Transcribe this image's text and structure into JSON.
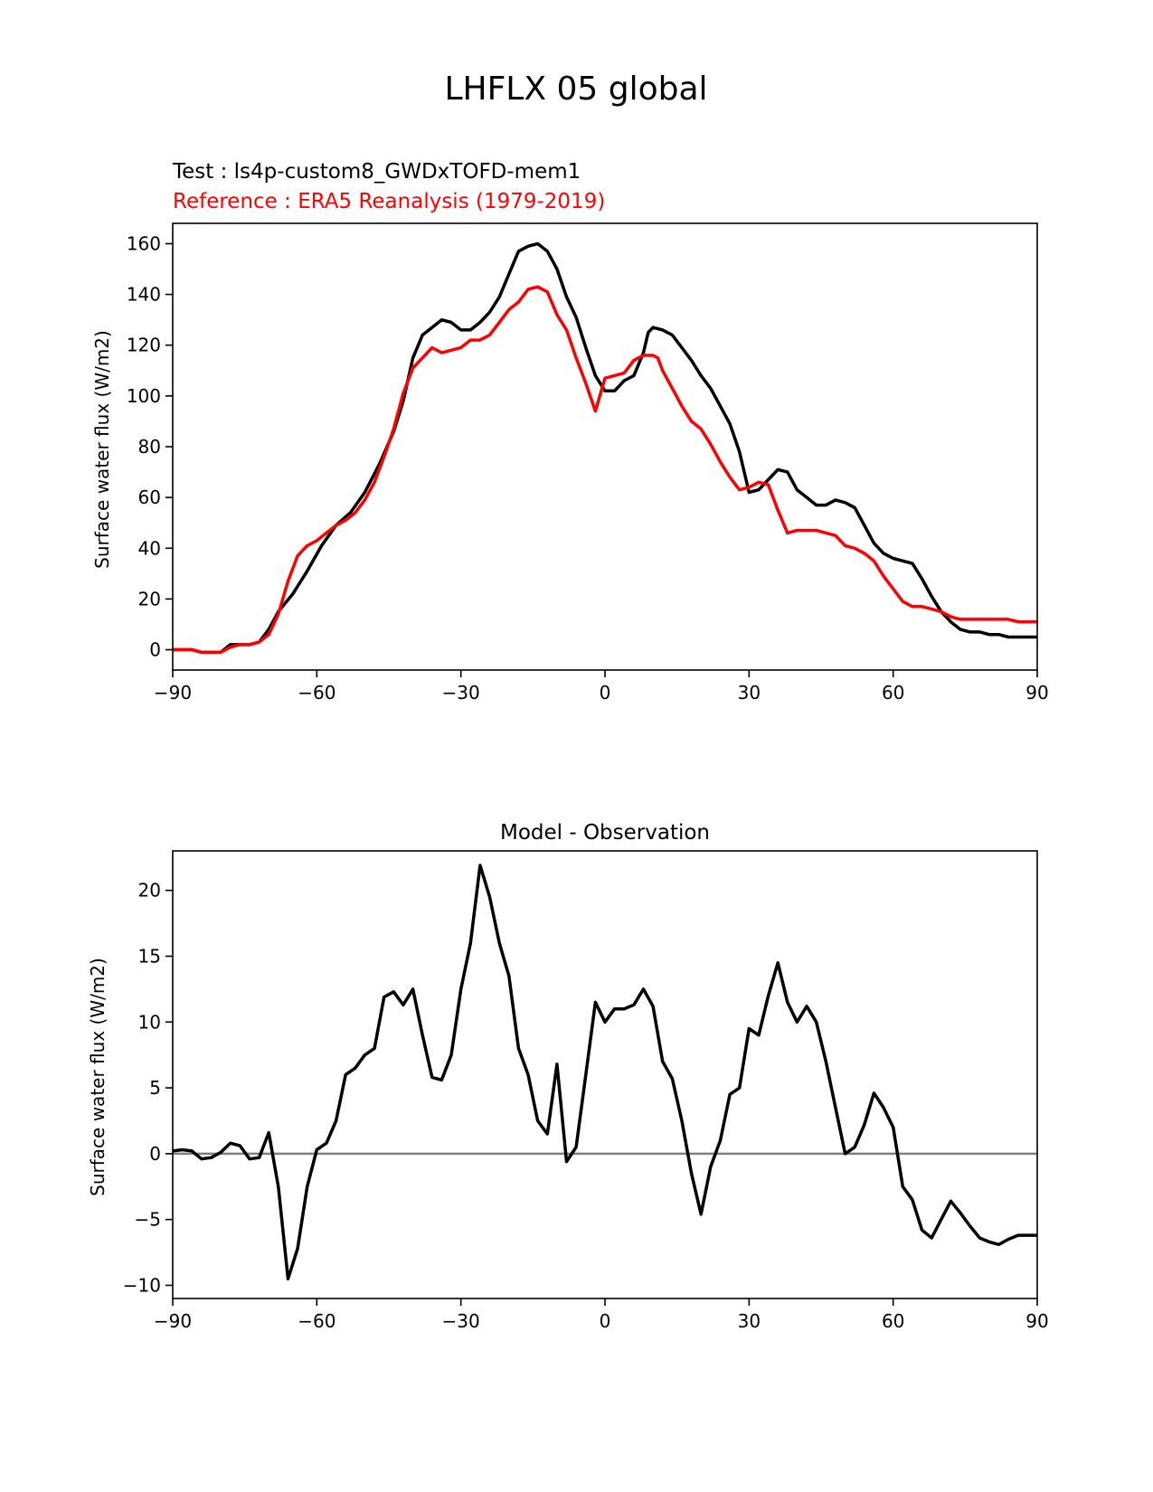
{
  "figure_title": "LHFLX 05 global",
  "colors": {
    "test": "#000000",
    "reference": "#ff0000",
    "zero_line": "#808080",
    "axes": "#000000"
  },
  "chart_data": [
    {
      "type": "line",
      "test_label": "Test : ls4p-custom8_GWDxTOFD-mem1",
      "reference_label": "Reference : ERA5 Reanalysis (1979-2019)",
      "xlabel": "",
      "ylabel": "Surface water flux (W/m2)",
      "xlim": [
        -90,
        90
      ],
      "ylim": [
        -8,
        168
      ],
      "xticks": [
        -90,
        -60,
        -30,
        0,
        30,
        60,
        90
      ],
      "xtick_labels": [
        "−90",
        "−60",
        "−30",
        "0",
        "30",
        "60",
        "90"
      ],
      "yticks": [
        0,
        20,
        40,
        60,
        80,
        100,
        120,
        140,
        160
      ],
      "ytick_labels": [
        "0",
        "20",
        "40",
        "60",
        "80",
        "100",
        "120",
        "140",
        "160"
      ],
      "series": [
        {
          "name": "Test",
          "x": [
            -90,
            -86,
            -84,
            -82,
            -80,
            -78,
            -76,
            -74,
            -72,
            -70,
            -68,
            -65,
            -62,
            -59,
            -56,
            -53,
            -50,
            -47,
            -44,
            -42,
            -40,
            -38,
            -36,
            -34,
            -32,
            -30,
            -28,
            -26,
            -24,
            -22,
            -20,
            -18,
            -16,
            -14,
            -12,
            -10,
            -8,
            -6,
            -4,
            -2,
            0,
            2,
            4,
            6,
            8,
            9,
            10,
            12,
            14,
            16,
            18,
            20,
            22,
            24,
            26,
            28,
            30,
            32,
            34,
            36,
            38,
            40,
            42,
            44,
            46,
            48,
            50,
            52,
            54,
            56,
            58,
            60,
            62,
            64,
            66,
            68,
            70,
            72,
            74,
            76,
            78,
            80,
            82,
            84,
            86,
            88,
            90
          ],
          "y": [
            0,
            0,
            -1,
            -1,
            -1,
            2,
            2,
            2,
            3,
            8,
            15,
            22,
            31,
            41,
            49,
            54,
            62,
            73,
            86,
            98,
            115,
            124,
            127,
            130,
            129,
            126,
            126,
            129,
            133,
            139,
            148,
            157,
            159,
            160,
            157,
            150,
            139,
            131,
            119,
            108,
            102,
            102,
            106,
            108,
            117,
            125,
            127,
            126,
            124,
            119,
            114,
            108,
            103,
            96,
            89,
            78,
            62,
            63,
            67,
            71,
            70,
            63,
            60,
            57,
            57,
            59,
            58,
            56,
            49,
            42,
            38,
            36,
            35,
            34,
            28,
            21,
            15,
            11,
            8,
            7,
            7,
            6,
            6,
            5,
            5,
            5,
            5
          ]
        },
        {
          "name": "Reference",
          "x": [
            -90,
            -86,
            -84,
            -82,
            -80,
            -78,
            -76,
            -74,
            -72,
            -70,
            -68,
            -66,
            -64,
            -62,
            -60,
            -58,
            -56,
            -54,
            -52,
            -50,
            -48,
            -46,
            -44,
            -42,
            -40,
            -38,
            -36,
            -34,
            -32,
            -30,
            -28,
            -26,
            -24,
            -22,
            -20,
            -18,
            -16,
            -14,
            -12,
            -10,
            -8,
            -6,
            -4,
            -2,
            0,
            2,
            4,
            6,
            8,
            10,
            11,
            12,
            14,
            16,
            18,
            20,
            22,
            24,
            26,
            28,
            30,
            32,
            34,
            36,
            38,
            40,
            42,
            44,
            46,
            48,
            50,
            52,
            54,
            56,
            58,
            60,
            62,
            64,
            66,
            68,
            70,
            72,
            74,
            76,
            78,
            80,
            82,
            84,
            86,
            88,
            90
          ],
          "y": [
            0,
            0,
            -1,
            -1,
            -1,
            1,
            2,
            2,
            3,
            6,
            14,
            27,
            37,
            41,
            43,
            46,
            49,
            51,
            54,
            59,
            66,
            76,
            87,
            101,
            111,
            115,
            119,
            117,
            118,
            119,
            122,
            122,
            124,
            129,
            134,
            137,
            142,
            143,
            141,
            132,
            126,
            115,
            105,
            94,
            107,
            108,
            109,
            114,
            116,
            116,
            115,
            110,
            103,
            96,
            90,
            87,
            81,
            74,
            68,
            63,
            64,
            66,
            65,
            55,
            46,
            47,
            47,
            47,
            46,
            45,
            41,
            40,
            38,
            35,
            29,
            24,
            19,
            17,
            17,
            16,
            15,
            13,
            12,
            12,
            12,
            12,
            12,
            12,
            11,
            11,
            11
          ]
        }
      ]
    },
    {
      "type": "line",
      "title": "Model - Observation",
      "xlabel": "",
      "ylabel": "Surface water flux (W/m2)",
      "xlim": [
        -90,
        90
      ],
      "ylim": [
        -11,
        23
      ],
      "xticks": [
        -90,
        -60,
        -30,
        0,
        30,
        60,
        90
      ],
      "xtick_labels": [
        "−90",
        "−60",
        "−30",
        "0",
        "30",
        "60",
        "90"
      ],
      "yticks": [
        -10,
        -5,
        0,
        5,
        10,
        15,
        20
      ],
      "ytick_labels": [
        "−10",
        "−5",
        "0",
        "5",
        "10",
        "15",
        "20"
      ],
      "zero_line": 0,
      "series": [
        {
          "name": "Model - Observation",
          "x": [
            -90,
            -88,
            -86,
            -84,
            -82,
            -80,
            -78,
            -76,
            -74,
            -72,
            -70,
            -68,
            -66,
            -64,
            -62,
            -60,
            -58,
            -56,
            -54,
            -52,
            -50,
            -48,
            -46,
            -44,
            -42,
            -40,
            -38,
            -36,
            -34,
            -32,
            -30,
            -28,
            -26,
            -24,
            -22,
            -20,
            -18,
            -16,
            -14,
            -12,
            -10,
            -8,
            -6,
            -4,
            -2,
            0,
            2,
            4,
            6,
            8,
            10,
            12,
            14,
            16,
            18,
            20,
            22,
            24,
            26,
            28,
            30,
            32,
            34,
            36,
            38,
            40,
            42,
            44,
            46,
            48,
            50,
            52,
            54,
            56,
            58,
            60,
            62,
            64,
            66,
            68,
            70,
            72,
            74,
            76,
            78,
            80,
            82,
            84,
            86,
            88,
            90
          ],
          "y": [
            0.2,
            0.3,
            0.2,
            -0.4,
            -0.3,
            0.1,
            0.8,
            0.6,
            -0.4,
            -0.3,
            1.6,
            -2.5,
            -9.5,
            -7.2,
            -2.5,
            0.3,
            0.8,
            2.5,
            6,
            6.5,
            7.5,
            8,
            11.9,
            12.3,
            11.3,
            12.5,
            9,
            5.8,
            5.6,
            7.5,
            12.5,
            16,
            21.9,
            19.5,
            16,
            13.5,
            8,
            6,
            2.5,
            1.5,
            6.8,
            -0.6,
            0.5,
            6,
            11.5,
            10,
            11,
            11,
            11.3,
            12.5,
            11.2,
            7,
            5.7,
            2.5,
            -1.5,
            -4.6,
            -1,
            1,
            4.5,
            5,
            9.5,
            9,
            12,
            14.5,
            11.5,
            10,
            11.2,
            10,
            7,
            3.5,
            0,
            0.5,
            2.2,
            4.6,
            3.5,
            2,
            -2.5,
            -3.5,
            -5.8,
            -6.4,
            -5,
            -3.6,
            -4.5,
            -5.5,
            -6.4,
            -6.7,
            -6.9,
            -6.5,
            -6.2,
            -6.2,
            -6.2
          ]
        }
      ]
    }
  ]
}
